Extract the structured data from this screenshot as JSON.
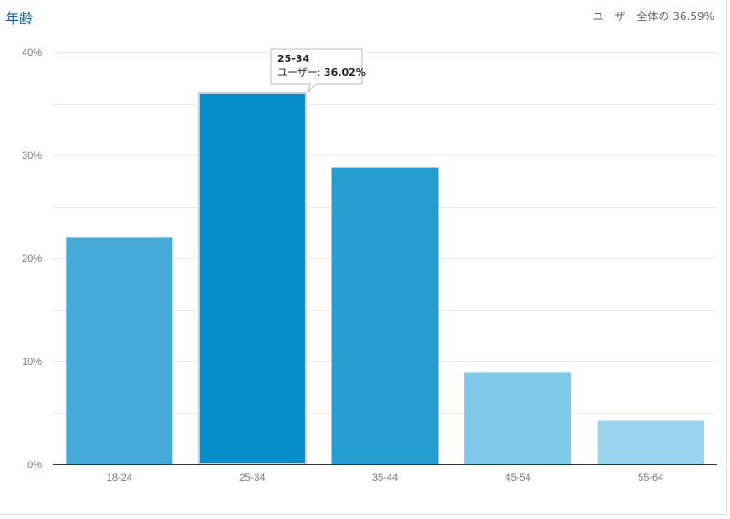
{
  "header": {
    "title": "年齢",
    "summary": "ユーザー全体の 36.59%"
  },
  "tooltip": {
    "category": "25-34",
    "label": "ユーザー: ",
    "value": "36.02%"
  },
  "colors": {
    "axis": "#333333",
    "grid": "#ebebeb",
    "highlight_border": "#b8d6ea"
  },
  "chart_data": {
    "type": "bar",
    "title": "年齢",
    "categories": [
      "18-24",
      "25-34",
      "35-44",
      "45-54",
      "55-64"
    ],
    "series": [
      {
        "name": "ユーザー",
        "values": [
          22.0,
          36.02,
          28.8,
          8.9,
          4.2
        ]
      }
    ],
    "bar_colors": [
      "#47aad8",
      "#058dc7",
      "#259dd1",
      "#81c9e8",
      "#99d3ee"
    ],
    "highlighted_index": 1,
    "ylim": [
      0,
      40
    ],
    "y_ticks": [
      0,
      10,
      20,
      30,
      40
    ],
    "y_tick_labels": [
      "0%",
      "10%",
      "20%",
      "30%",
      "40%"
    ],
    "xlabel": "",
    "ylabel": "",
    "grid": true,
    "minor_grid": true
  }
}
